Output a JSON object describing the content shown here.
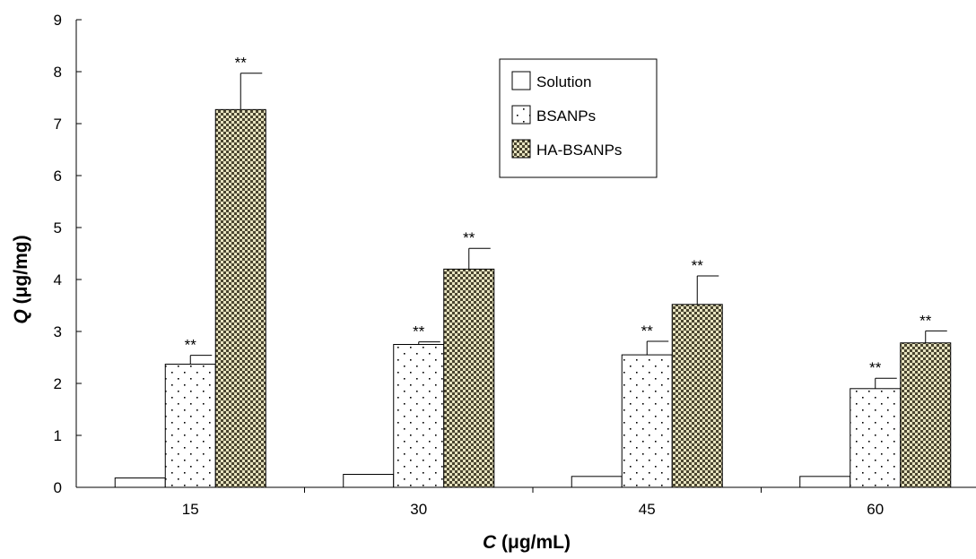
{
  "chart_data": {
    "type": "bar",
    "title": "",
    "categories": [
      "15",
      "30",
      "45",
      "60"
    ],
    "xlabel_symbol": "C",
    "xlabel_unit": " (μg/mL)",
    "ylabel_symbol": "Q",
    "ylabel_unit": " (μg/mg)",
    "ylim": [
      0,
      9
    ],
    "yticks": [
      "0",
      "1",
      "2",
      "3",
      "4",
      "5",
      "6",
      "7",
      "8",
      "9"
    ],
    "legend_position": "top-center-right",
    "grid": false,
    "series": [
      {
        "name": "Solution",
        "pattern": "solid-white",
        "values": [
          0.18,
          0.25,
          0.21,
          0.21
        ],
        "errors": [
          0,
          0,
          0,
          0
        ],
        "labels": [
          "",
          "",
          "",
          ""
        ]
      },
      {
        "name": "BSANPs",
        "pattern": "dotted",
        "values": [
          2.37,
          2.75,
          2.55,
          1.9
        ],
        "errors": [
          0.17,
          0.05,
          0.26,
          0.2
        ],
        "labels": [
          "**",
          "**",
          "**",
          "**"
        ]
      },
      {
        "name": "HA-BSANPs",
        "pattern": "checkered",
        "values": [
          7.27,
          4.2,
          3.52,
          2.78
        ],
        "errors": [
          0.7,
          0.4,
          0.55,
          0.23
        ],
        "labels": [
          "**",
          "**",
          "**",
          "**"
        ]
      }
    ]
  }
}
